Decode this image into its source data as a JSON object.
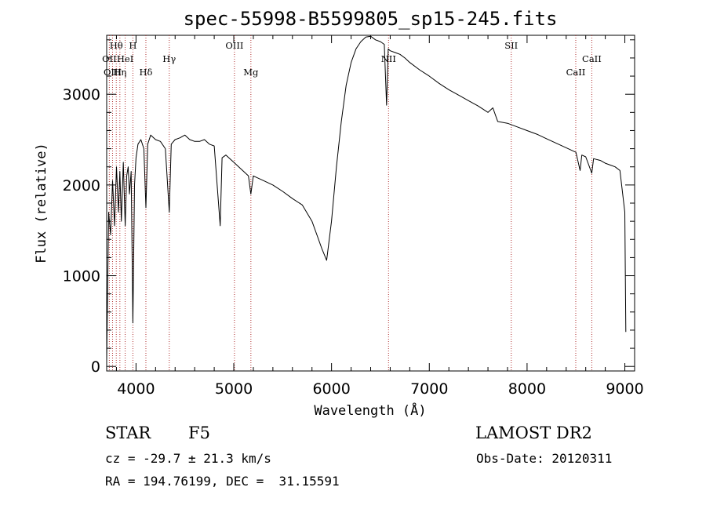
{
  "chart_data": {
    "type": "line",
    "title": "spec-55998-B5599805_sp15-245.fits",
    "xlabel": "Wavelength (Å)",
    "ylabel": "Flux (relative)",
    "xlim": [
      3700,
      9100
    ],
    "ylim": [
      -50,
      3650
    ],
    "xticks": [
      4000,
      5000,
      6000,
      7000,
      8000,
      9000
    ],
    "yticks": [
      0,
      1000,
      2000,
      3000
    ],
    "grid": false,
    "series": [
      {
        "values": [
          [
            3700,
            60
          ],
          [
            3720,
            1700
          ],
          [
            3740,
            1450
          ],
          [
            3760,
            2050
          ],
          [
            3780,
            1550
          ],
          [
            3800,
            2200
          ],
          [
            3820,
            1700
          ],
          [
            3835,
            2150
          ],
          [
            3850,
            1600
          ],
          [
            3870,
            2250
          ],
          [
            3889,
            1550
          ],
          [
            3905,
            2100
          ],
          [
            3920,
            2200
          ],
          [
            3933,
            1900
          ],
          [
            3950,
            2150
          ],
          [
            3968,
            480
          ],
          [
            3985,
            2000
          ],
          [
            4000,
            2300
          ],
          [
            4020,
            2450
          ],
          [
            4050,
            2500
          ],
          [
            4080,
            2400
          ],
          [
            4101,
            1750
          ],
          [
            4120,
            2450
          ],
          [
            4150,
            2550
          ],
          [
            4200,
            2500
          ],
          [
            4250,
            2480
          ],
          [
            4300,
            2400
          ],
          [
            4340,
            1700
          ],
          [
            4360,
            2450
          ],
          [
            4400,
            2500
          ],
          [
            4450,
            2520
          ],
          [
            4500,
            2550
          ],
          [
            4550,
            2500
          ],
          [
            4600,
            2480
          ],
          [
            4650,
            2480
          ],
          [
            4700,
            2500
          ],
          [
            4750,
            2450
          ],
          [
            4800,
            2430
          ],
          [
            4861,
            1550
          ],
          [
            4880,
            2300
          ],
          [
            4920,
            2330
          ],
          [
            4950,
            2300
          ],
          [
            5000,
            2250
          ],
          [
            5050,
            2200
          ],
          [
            5100,
            2150
          ],
          [
            5150,
            2100
          ],
          [
            5175,
            1900
          ],
          [
            5200,
            2100
          ],
          [
            5300,
            2050
          ],
          [
            5400,
            2000
          ],
          [
            5500,
            1930
          ],
          [
            5600,
            1850
          ],
          [
            5700,
            1780
          ],
          [
            5800,
            1600
          ],
          [
            5850,
            1450
          ],
          [
            5900,
            1300
          ],
          [
            5950,
            1170
          ],
          [
            6000,
            1600
          ],
          [
            6050,
            2200
          ],
          [
            6100,
            2700
          ],
          [
            6150,
            3100
          ],
          [
            6200,
            3350
          ],
          [
            6250,
            3500
          ],
          [
            6300,
            3580
          ],
          [
            6350,
            3630
          ],
          [
            6400,
            3640
          ],
          [
            6450,
            3600
          ],
          [
            6500,
            3580
          ],
          [
            6540,
            3550
          ],
          [
            6563,
            2880
          ],
          [
            6580,
            3500
          ],
          [
            6600,
            3480
          ],
          [
            6650,
            3460
          ],
          [
            6700,
            3440
          ],
          [
            6750,
            3400
          ],
          [
            6800,
            3350
          ],
          [
            6900,
            3270
          ],
          [
            7000,
            3200
          ],
          [
            7100,
            3120
          ],
          [
            7200,
            3050
          ],
          [
            7300,
            2990
          ],
          [
            7400,
            2930
          ],
          [
            7500,
            2870
          ],
          [
            7600,
            2800
          ],
          [
            7650,
            2850
          ],
          [
            7700,
            2700
          ],
          [
            7800,
            2680
          ],
          [
            7900,
            2640
          ],
          [
            8000,
            2600
          ],
          [
            8100,
            2560
          ],
          [
            8200,
            2510
          ],
          [
            8300,
            2460
          ],
          [
            8400,
            2410
          ],
          [
            8500,
            2360
          ],
          [
            8542,
            2160
          ],
          [
            8560,
            2330
          ],
          [
            8600,
            2310
          ],
          [
            8662,
            2130
          ],
          [
            8680,
            2290
          ],
          [
            8750,
            2270
          ],
          [
            8800,
            2240
          ],
          [
            8850,
            2220
          ],
          [
            8900,
            2200
          ],
          [
            8950,
            2160
          ],
          [
            9000,
            1700
          ],
          [
            9010,
            380
          ]
        ]
      }
    ],
    "lines": [
      {
        "label": "Hθ",
        "x": 3798,
        "row": 1
      },
      {
        "label": "OII",
        "x": 3727,
        "row": 2
      },
      {
        "label": "OIII",
        "x": 3760,
        "row": 3
      },
      {
        "label": "Hη",
        "x": 3835,
        "row": 3
      },
      {
        "label": "HeI",
        "x": 3889,
        "row": 2
      },
      {
        "label": "H",
        "x": 3968,
        "row": 1
      },
      {
        "label": "Hδ",
        "x": 4101,
        "row": 3
      },
      {
        "label": "Hγ",
        "x": 4340,
        "row": 2
      },
      {
        "label": "OIII",
        "x": 5007,
        "row": 1
      },
      {
        "label": "Mg",
        "x": 5175,
        "row": 3
      },
      {
        "label": "NII",
        "x": 6583,
        "row": 2
      },
      {
        "label": "SII",
        "x": 7838,
        "row": 1
      },
      {
        "label": "CaII",
        "x": 8498,
        "row": 3
      },
      {
        "label": "CaII",
        "x": 8662,
        "row": 2
      }
    ]
  },
  "info": {
    "class": "STAR",
    "subclass": "F5",
    "survey": "LAMOST DR2",
    "cz": "cz = -29.7 ± 21.3 km/s",
    "obs_date": "Obs-Date: 20120311",
    "coords": "RA = 194.76199, DEC =  31.15591"
  }
}
